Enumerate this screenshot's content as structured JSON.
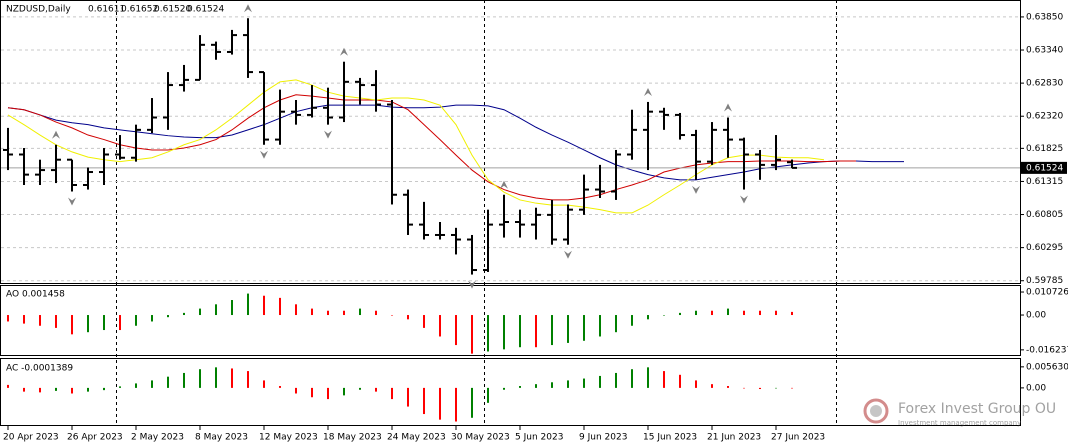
{
  "chart_data": [
    {
      "type": "ohlc",
      "title": "NZDUSD,Daily",
      "title_values": [
        "0.61611",
        "0.61652",
        "0.61520",
        "0.61524"
      ],
      "color": "#000000",
      "categories": [
        "20 Apr 2023",
        null,
        null,
        null,
        "26 Apr 2023",
        null,
        null,
        null,
        "2 May 2023",
        null,
        null,
        null,
        "8 May 2023",
        null,
        null,
        null,
        "12 May 2023",
        null,
        null,
        null,
        "18 May 2023",
        null,
        null,
        null,
        "24 May 2023",
        null,
        null,
        null,
        "30 May 2023",
        null,
        null,
        null,
        "5 Jun 2023",
        null,
        null,
        null,
        "9 Jun 2023",
        null,
        null,
        null,
        "15 Jun 2023",
        null,
        null,
        null,
        "21 Jun 2023",
        null,
        null,
        null,
        "27 Jun 2023",
        null,
        null,
        null,
        null,
        null,
        null,
        null,
        null
      ],
      "open": [
        0.618,
        0.6173,
        0.6142,
        0.6149,
        0.6165,
        0.6126,
        0.6146,
        0.6173,
        0.6168,
        0.6211,
        0.623,
        0.628,
        0.6288,
        0.6342,
        0.6331,
        0.6357,
        0.63,
        0.6196,
        0.6239,
        0.6234,
        0.6245,
        0.623,
        0.6285,
        0.628,
        0.625,
        0.6111,
        0.6065,
        0.6049,
        0.6049,
        0.6042,
        0.5995,
        0.6065,
        0.6069,
        0.6065,
        0.608,
        0.6042,
        0.6088,
        0.6119,
        0.6116,
        0.6173,
        0.6211,
        0.6239,
        0.6234,
        0.6203,
        0.6162,
        0.6211,
        0.6196,
        0.6173,
        0.6157,
        0.61611,
        null,
        null,
        null,
        null,
        null,
        null,
        null
      ],
      "high": [
        0.6214,
        0.6183,
        0.6165,
        0.6188,
        0.6165,
        0.6153,
        0.6183,
        0.6203,
        0.6219,
        0.626,
        0.63,
        0.6311,
        0.6357,
        0.6347,
        0.6365,
        0.6383,
        0.63,
        0.6273,
        0.6257,
        0.628,
        0.6276,
        0.6316,
        0.6291,
        0.6303,
        0.6257,
        0.6119,
        0.61,
        0.6069,
        0.606,
        0.6049,
        0.6088,
        0.6111,
        0.6088,
        0.6091,
        0.6103,
        0.6096,
        0.6142,
        0.6157,
        0.618,
        0.6242,
        0.6254,
        0.6245,
        0.6237,
        0.6211,
        0.6223,
        0.623,
        0.6199,
        0.618,
        0.6203,
        0.61652,
        null,
        null,
        null,
        null,
        null,
        null,
        null
      ],
      "low": [
        0.6149,
        0.6126,
        0.6126,
        0.6129,
        0.6116,
        0.6119,
        0.6126,
        0.6165,
        0.6162,
        0.6206,
        0.6211,
        0.627,
        0.6288,
        0.6319,
        0.6327,
        0.6291,
        0.6188,
        0.6188,
        0.6219,
        0.623,
        0.6219,
        0.6223,
        0.625,
        0.6239,
        0.6096,
        0.6049,
        0.6042,
        0.6042,
        0.6019,
        0.5988,
        0.5992,
        0.6045,
        0.6045,
        0.6042,
        0.6034,
        0.6034,
        0.608,
        0.6106,
        0.6103,
        0.6165,
        0.6149,
        0.6211,
        0.6196,
        0.6134,
        0.6157,
        0.6168,
        0.6119,
        0.6134,
        0.6149,
        0.6152,
        null,
        null,
        null,
        null,
        null,
        null,
        null
      ],
      "close": [
        0.6173,
        0.6142,
        0.6149,
        0.6165,
        0.6126,
        0.6146,
        0.6173,
        0.6168,
        0.6211,
        0.623,
        0.628,
        0.6288,
        0.6342,
        0.6331,
        0.6357,
        0.63,
        0.6196,
        0.6239,
        0.6234,
        0.6245,
        0.623,
        0.6285,
        0.628,
        0.625,
        0.6111,
        0.6065,
        0.6049,
        0.6049,
        0.6042,
        0.5995,
        0.6065,
        0.6069,
        0.6065,
        0.608,
        0.6042,
        0.6088,
        0.6119,
        0.6116,
        0.6173,
        0.6211,
        0.6239,
        0.6234,
        0.6203,
        0.6162,
        0.6211,
        0.6196,
        0.6173,
        0.6157,
        0.6165,
        0.61524,
        null,
        null,
        null,
        null,
        null,
        null,
        null
      ],
      "lines": [
        {
          "color": "#00008b",
          "values": [
            0.6245,
            0.6242,
            0.6234,
            0.6226,
            0.6222,
            0.6219,
            0.6214,
            0.6211,
            0.6208,
            0.6205,
            0.6202,
            0.62,
            0.6199,
            0.6199,
            0.6203,
            0.6211,
            0.6219,
            0.6229,
            0.6239,
            0.6245,
            0.6249,
            0.6249,
            0.6249,
            0.6249,
            0.6246,
            0.6245,
            0.6245,
            0.6246,
            0.6249,
            0.6249,
            0.6248,
            0.6242,
            0.6229,
            0.6215,
            0.6203,
            0.6192,
            0.618,
            0.6168,
            0.6157,
            0.6149,
            0.6142,
            0.6137,
            0.6134,
            0.6134,
            0.6138,
            0.6142,
            0.6146,
            0.6151,
            0.6154,
            0.6157,
            0.616,
            0.6162,
            0.6163,
            0.6163,
            0.6162,
            0.6162,
            0.6162
          ]
        },
        {
          "color": "#d00000",
          "values": [
            0.6245,
            0.6242,
            0.6234,
            0.6223,
            0.6214,
            0.6203,
            0.6196,
            0.6188,
            0.6183,
            0.618,
            0.618,
            0.6183,
            0.6188,
            0.6196,
            0.6211,
            0.6229,
            0.6245,
            0.6257,
            0.6265,
            0.6263,
            0.626,
            0.6257,
            0.6257,
            0.6257,
            0.6254,
            0.6242,
            0.6219,
            0.6196,
            0.6172,
            0.6149,
            0.6131,
            0.6119,
            0.6111,
            0.6106,
            0.6103,
            0.6103,
            0.6106,
            0.6111,
            0.6119,
            0.6126,
            0.6134,
            0.6146,
            0.6152,
            0.6157,
            0.616,
            0.6162,
            0.6162,
            0.6163,
            0.6163,
            0.6163,
            0.6162,
            0.6162,
            0.6163,
            0.6163,
            null,
            null,
            null
          ]
        },
        {
          "color": "#f0f000",
          "values": [
            0.6234,
            0.6219,
            0.6203,
            0.6188,
            0.6177,
            0.6169,
            0.6165,
            0.6162,
            0.6165,
            0.6168,
            0.6177,
            0.6188,
            0.6196,
            0.6211,
            0.6229,
            0.6249,
            0.6269,
            0.6285,
            0.6288,
            0.628,
            0.6269,
            0.6263,
            0.626,
            0.6257,
            0.626,
            0.626,
            0.6257,
            0.6249,
            0.6219,
            0.6172,
            0.6134,
            0.6115,
            0.6103,
            0.6098,
            0.6095,
            0.6095,
            0.6092,
            0.6088,
            0.6083,
            0.6083,
            0.6095,
            0.6111,
            0.6126,
            0.6142,
            0.6157,
            0.6168,
            0.6172,
            0.6172,
            0.6169,
            0.6168,
            0.6168,
            0.6165,
            null,
            null,
            null,
            null,
            null
          ]
        }
      ],
      "fractals": {
        "up": [
          3,
          15,
          21,
          31,
          40,
          45
        ],
        "down": [
          4,
          16,
          20,
          29,
          35,
          43,
          46
        ],
        "color": "#808080"
      },
      "price_line_color": "#a0a0a0",
      "ylim": [
        0.5975,
        0.6408
      ],
      "yticks": [
        {
          "value": 0.6385,
          "label": "0.63850"
        },
        {
          "value": 0.6334,
          "label": "0.63340"
        },
        {
          "value": 0.6283,
          "label": "0.62830"
        },
        {
          "value": 0.6232,
          "label": "0.62320"
        },
        0.61825,
        0.61315,
        0.60805,
        0.60295,
        0.59785
      ],
      "grid": true
    },
    {
      "type": "histogram",
      "title": "AO 0.001458",
      "up_color": "#008000",
      "down_color": "#ff0000",
      "values": [
        -0.003,
        -0.004,
        -0.005,
        -0.006,
        -0.009,
        -0.008,
        -0.007,
        -0.007,
        -0.005,
        -0.003,
        -0.001,
        0.001,
        0.003,
        0.005,
        0.007,
        0.01,
        0.009,
        0.008,
        0.005,
        0.003,
        0.002,
        0.002,
        0.003,
        0.002,
        0.0,
        -0.002,
        -0.006,
        -0.01,
        -0.014,
        -0.018,
        -0.017,
        -0.016,
        -0.015,
        -0.015,
        -0.014,
        -0.013,
        -0.012,
        -0.01,
        -0.008,
        -0.005,
        -0.002,
        0.0,
        0.001,
        0.002,
        0.002,
        0.003,
        0.002,
        0.002,
        0.002,
        0.001458
      ],
      "ylim": [
        -0.0191,
        0.014
      ],
      "yticks": [
        0.010726,
        {
          "value": 0,
          "label": "0.00"
        },
        -0.016237
      ]
    },
    {
      "type": "histogram",
      "title": "AC -0.0001389",
      "up_color": "#008000",
      "down_color": "#ff0000",
      "values": [
        0.0008,
        -0.001,
        -0.0012,
        -0.0008,
        -0.0015,
        -0.001,
        -0.0006,
        0.0004,
        0.0012,
        0.002,
        0.003,
        0.004,
        0.005,
        0.0055,
        0.0052,
        0.0045,
        0.002,
        0.0005,
        -0.0015,
        -0.0025,
        -0.003,
        -0.002,
        -0.0005,
        -0.001,
        -0.003,
        -0.005,
        -0.007,
        -0.0085,
        -0.009,
        -0.008,
        -0.004,
        -0.0005,
        0.0005,
        0.001,
        0.0015,
        0.002,
        0.0025,
        0.0032,
        0.004,
        0.005,
        0.0055,
        0.0045,
        0.0035,
        0.002,
        0.001,
        0.0005,
        0.0,
        -0.0003,
        -0.0001,
        -0.0001389
      ],
      "ylim": [
        -0.0102,
        0.008
      ],
      "yticks": [
        0.0056305,
        {
          "value": 0,
          "label": "0.00"
        }
      ]
    }
  ],
  "watermark": {
    "name": "Forex Invest Group OU",
    "tagline": "Investment management company"
  }
}
